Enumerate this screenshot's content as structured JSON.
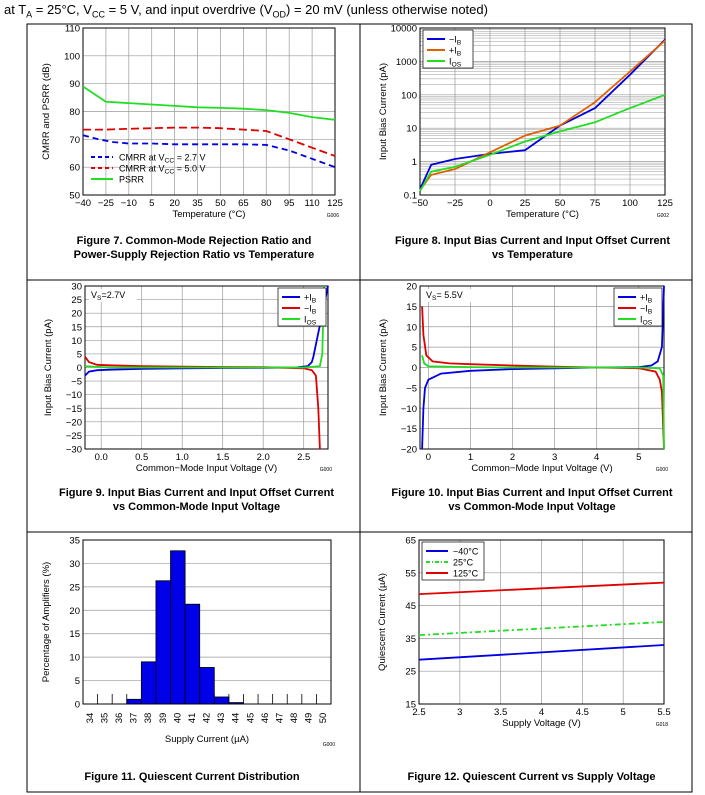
{
  "header": {
    "prefix": "at T",
    "ta_sub": "A",
    "mid1": " = 25°C, V",
    "vcc_sub": "CC",
    "mid2": " = 5 V, and input overdrive (V",
    "vod_sub": "OD",
    "suffix": ") = 20 mV (unless otherwise noted)"
  },
  "chart_data": [
    {
      "id": "fig7",
      "type": "line",
      "figure_caption": [
        "Figure 7. Common-Mode Rejection Ratio and",
        "Power-Supply Rejection Ratio vs Temperature"
      ],
      "code": "G006",
      "xlabel": "Temperature (°C)",
      "ylabel": "CMRR and PSRR (dB)",
      "xlim": [
        -40,
        125
      ],
      "ylim": [
        50,
        110
      ],
      "x_ticks": [
        -40,
        -25,
        -10,
        5,
        20,
        35,
        50,
        65,
        80,
        95,
        110,
        125
      ],
      "x_tick_labels": [
        "−40",
        "−25",
        "−10",
        "5",
        "20",
        "35",
        "50",
        "65",
        "80",
        "95",
        "110",
        "125"
      ],
      "y_ticks": [
        50,
        60,
        70,
        80,
        90,
        100,
        110
      ],
      "grid": true,
      "legend_position": "bottom-left",
      "series": [
        {
          "name": "CMRR at VCC = 2.7 V",
          "legend": [
            "CMRR at V",
            "CC",
            " = 2.7 V"
          ],
          "color": "#0000e0",
          "dash": "6,4",
          "x": [
            -40,
            -30,
            -20,
            -10,
            5,
            20,
            35,
            50,
            65,
            80,
            95,
            110,
            125
          ],
          "y": [
            71.5,
            70,
            69,
            68.5,
            68.5,
            68.2,
            68.2,
            68.2,
            68.2,
            68,
            66,
            63,
            60
          ]
        },
        {
          "name": "CMRR at VCC = 5.0 V",
          "legend": [
            "CMRR at V",
            "CC",
            " = 5.0 V"
          ],
          "color": "#e00000",
          "dash": "8,4",
          "x": [
            -40,
            -25,
            -10,
            5,
            20,
            35,
            50,
            65,
            80,
            95,
            110,
            125
          ],
          "y": [
            73.5,
            73.5,
            73.8,
            74,
            74.2,
            74.2,
            74,
            73.5,
            73,
            70,
            67,
            64
          ]
        },
        {
          "name": "PSRR",
          "legend": [
            "PSRR",
            "",
            ""
          ],
          "color": "#22dd22",
          "dash": "",
          "x": [
            -40,
            -25,
            -10,
            5,
            20,
            35,
            50,
            65,
            80,
            95,
            110,
            125
          ],
          "y": [
            89,
            83.5,
            83,
            82.5,
            82,
            81.5,
            81.3,
            81,
            80.5,
            79.5,
            78,
            77
          ]
        }
      ]
    },
    {
      "id": "fig8",
      "type": "line",
      "figure_caption": [
        "Figure 8. Input Bias Current and Input Offset Current",
        "vs Temperature"
      ],
      "code": "G002",
      "xlabel": "Temperature (°C)",
      "ylabel": "Input Bias Current (pA)",
      "xlim": [
        -50,
        125
      ],
      "ylim": [
        0.1,
        10000
      ],
      "y_scale": "log",
      "x_ticks": [
        -50,
        -25,
        0,
        25,
        50,
        75,
        100,
        125
      ],
      "x_tick_labels": [
        "−50",
        "−25",
        "0",
        "25",
        "50",
        "75",
        "100",
        "125"
      ],
      "y_ticks": [
        0.1,
        1,
        10,
        100,
        1000,
        10000
      ],
      "y_tick_labels": [
        "0.1",
        "1",
        "10",
        "100",
        "1000",
        "10000"
      ],
      "grid": true,
      "legend_position": "top-left",
      "series": [
        {
          "name": "−IB",
          "legend": [
            "−I",
            "B"
          ],
          "color": "#0000e0",
          "x": [
            -50,
            -42,
            -25,
            0,
            25,
            50,
            75,
            100,
            125
          ],
          "y": [
            0.15,
            0.8,
            1.2,
            1.7,
            2.2,
            12,
            40,
            400,
            4500
          ]
        },
        {
          "name": "+IB",
          "legend": [
            "+I",
            "B"
          ],
          "color": "#e06000",
          "x": [
            -50,
            -42,
            -25,
            0,
            25,
            50,
            75,
            100,
            125
          ],
          "y": [
            0.14,
            0.4,
            0.6,
            1.9,
            6,
            12,
            60,
            500,
            4200
          ]
        },
        {
          "name": "IOS",
          "legend": [
            "I",
            "OS"
          ],
          "color": "#22dd22",
          "x": [
            -50,
            -42,
            -25,
            0,
            25,
            50,
            75,
            100,
            125
          ],
          "y": [
            0.13,
            0.5,
            0.7,
            1.6,
            4,
            8,
            15,
            40,
            100
          ]
        }
      ]
    },
    {
      "id": "fig9",
      "type": "line",
      "figure_caption": [
        "Figure 9. Input Bias Current and Input Offset Current",
        "vs Common-Mode Input Voltage"
      ],
      "code": "G000",
      "xlabel": "Common−Mode Input Voltage (V)",
      "ylabel": "Input Bias Current (pA)",
      "annotation": "VS=2.7V",
      "annotation_parts": [
        "V",
        "S",
        "=2.7V"
      ],
      "xlim": [
        -0.2,
        2.8
      ],
      "ylim": [
        -30,
        30
      ],
      "x_ticks": [
        0,
        0.5,
        1,
        1.5,
        2,
        2.5
      ],
      "x_tick_labels": [
        "0.0",
        "0.5",
        "1.0",
        "1.5",
        "2.0",
        "2.5"
      ],
      "y_ticks": [
        -30,
        -25,
        -20,
        -15,
        -10,
        -5,
        0,
        5,
        10,
        15,
        20,
        25,
        30
      ],
      "y_tick_labels": [
        "−30",
        "−25",
        "−20",
        "−15",
        "−10",
        "−5",
        "0",
        "5",
        "10",
        "15",
        "20",
        "25",
        "30"
      ],
      "grid": true,
      "legend_position": "top-right",
      "series": [
        {
          "name": "+IB",
          "legend": [
            "+I",
            "B"
          ],
          "color": "#0000e0",
          "x": [
            -0.2,
            -0.15,
            -0.05,
            0.1,
            0.5,
            1,
            1.5,
            2,
            2.4,
            2.55,
            2.6,
            2.62,
            2.8
          ],
          "y": [
            -3,
            -1.5,
            -1,
            -0.8,
            -0.5,
            -0.3,
            -0.2,
            -0.1,
            0,
            0.5,
            2,
            4,
            30
          ]
        },
        {
          "name": "−IB",
          "legend": [
            "−I",
            "B"
          ],
          "color": "#e00000",
          "x": [
            -0.2,
            -0.15,
            -0.05,
            0.1,
            0.5,
            1,
            1.5,
            2,
            2.5,
            2.6,
            2.65,
            2.68,
            2.7
          ],
          "y": [
            4,
            2,
            1,
            0.8,
            0.5,
            0.3,
            0.2,
            0.1,
            -0.3,
            -1,
            -3,
            -15,
            -30
          ]
        },
        {
          "name": "IOS",
          "legend": [
            "I",
            "OS"
          ],
          "color": "#22dd22",
          "x": [
            -0.2,
            0.1,
            0.5,
            1,
            1.5,
            2,
            2.5,
            2.7,
            2.73,
            2.75
          ],
          "y": [
            0.5,
            0,
            0,
            0,
            0,
            0,
            0,
            0.5,
            5,
            30
          ]
        }
      ]
    },
    {
      "id": "fig10",
      "type": "line",
      "figure_caption": [
        "Figure 10. Input Bias Current and Input Offset Current",
        "vs Common-Mode Input Voltage"
      ],
      "code": "G000",
      "xlabel": "Common−Mode Input Voltage (V)",
      "ylabel": "Input Bias Current (pA)",
      "annotation": "VS= 5.5V",
      "annotation_parts": [
        "V",
        "S",
        "= 5.5V"
      ],
      "xlim": [
        -0.2,
        5.6
      ],
      "ylim": [
        -20,
        20
      ],
      "x_ticks": [
        0,
        1,
        2,
        3,
        4,
        5
      ],
      "x_tick_labels": [
        "0",
        "1",
        "2",
        "3",
        "4",
        "5"
      ],
      "y_ticks": [
        -20,
        -15,
        -10,
        -5,
        0,
        5,
        10,
        15,
        20
      ],
      "y_tick_labels": [
        "−20",
        "−15",
        "−10",
        "−5",
        "0",
        "5",
        "10",
        "15",
        "20"
      ],
      "grid": true,
      "legend_position": "top-right",
      "series": [
        {
          "name": "+IB",
          "legend": [
            "+I",
            "B"
          ],
          "color": "#0000e0",
          "x": [
            -0.15,
            -0.12,
            -0.08,
            0,
            0.3,
            1,
            2,
            3,
            4,
            5,
            5.3,
            5.45,
            5.55,
            5.6
          ],
          "y": [
            -20,
            -10,
            -5,
            -3,
            -1.5,
            -0.8,
            -0.4,
            -0.2,
            0,
            0.1,
            0.5,
            1.5,
            5,
            20
          ]
        },
        {
          "name": "−IB",
          "legend": [
            "−I",
            "B"
          ],
          "color": "#e00000",
          "x": [
            -0.15,
            -0.12,
            -0.05,
            0.1,
            0.5,
            1,
            2,
            3,
            4,
            5,
            5.4,
            5.5,
            5.55,
            5.6
          ],
          "y": [
            15,
            8,
            3,
            1.5,
            1,
            0.8,
            0.5,
            0.2,
            0,
            -0.2,
            -1,
            -3,
            -6,
            -20
          ]
        },
        {
          "name": "IOS",
          "legend": [
            "I",
            "OS"
          ],
          "color": "#22dd22",
          "x": [
            -0.15,
            -0.1,
            0,
            1,
            2,
            3,
            4,
            5,
            5.5,
            5.58,
            5.6
          ],
          "y": [
            3,
            1,
            0.3,
            0.1,
            0,
            0,
            0,
            0,
            -0.2,
            -2,
            -20
          ]
        }
      ]
    },
    {
      "id": "fig11",
      "type": "bar",
      "figure_caption": [
        "Figure 11. Quiescent Current Distribution"
      ],
      "code": "G000",
      "xlabel": "Supply Current (µA)",
      "ylabel": "Percentage of Amplifiers (%)",
      "categories": [
        "34",
        "35",
        "36",
        "37",
        "38",
        "39",
        "40",
        "41",
        "42",
        "43",
        "44",
        "45",
        "46",
        "47",
        "48",
        "49",
        "50"
      ],
      "values": [
        0,
        0,
        0,
        1,
        9,
        26.3,
        32.7,
        21.3,
        7.8,
        1.5,
        0.3,
        0,
        0,
        0,
        0,
        0,
        0
      ],
      "ylim": [
        0,
        35
      ],
      "y_ticks": [
        0,
        5,
        10,
        15,
        20,
        25,
        30,
        35
      ],
      "bar_color": "#0000e8",
      "grid": true
    },
    {
      "id": "fig12",
      "type": "line",
      "figure_caption": [
        "Figure 12. Quiescent Current vs Supply Voltage"
      ],
      "code": "G018",
      "xlabel": "Supply Voltage (V)",
      "ylabel": "Quiescent Current (µA)",
      "xlim": [
        2.5,
        5.5
      ],
      "ylim": [
        15,
        65
      ],
      "x_ticks": [
        2.5,
        3,
        3.5,
        4,
        4.5,
        5,
        5.5
      ],
      "x_tick_labels": [
        "2.5",
        "3",
        "3.5",
        "4",
        "4.5",
        "5",
        "5.5"
      ],
      "y_ticks": [
        15,
        25,
        35,
        45,
        55,
        65
      ],
      "grid": true,
      "legend_position": "top-left",
      "series": [
        {
          "name": "−40°C",
          "color": "#0000e0",
          "dash": "",
          "x": [
            2.5,
            5.5
          ],
          "y": [
            28.5,
            33
          ]
        },
        {
          "name": "25°C",
          "color": "#22dd22",
          "dash": "6,3,2,3",
          "x": [
            2.5,
            5.5
          ],
          "y": [
            36,
            40
          ]
        },
        {
          "name": "125°C",
          "color": "#e00000",
          "dash": "",
          "x": [
            2.5,
            5.5
          ],
          "y": [
            48.5,
            52
          ]
        }
      ]
    }
  ]
}
